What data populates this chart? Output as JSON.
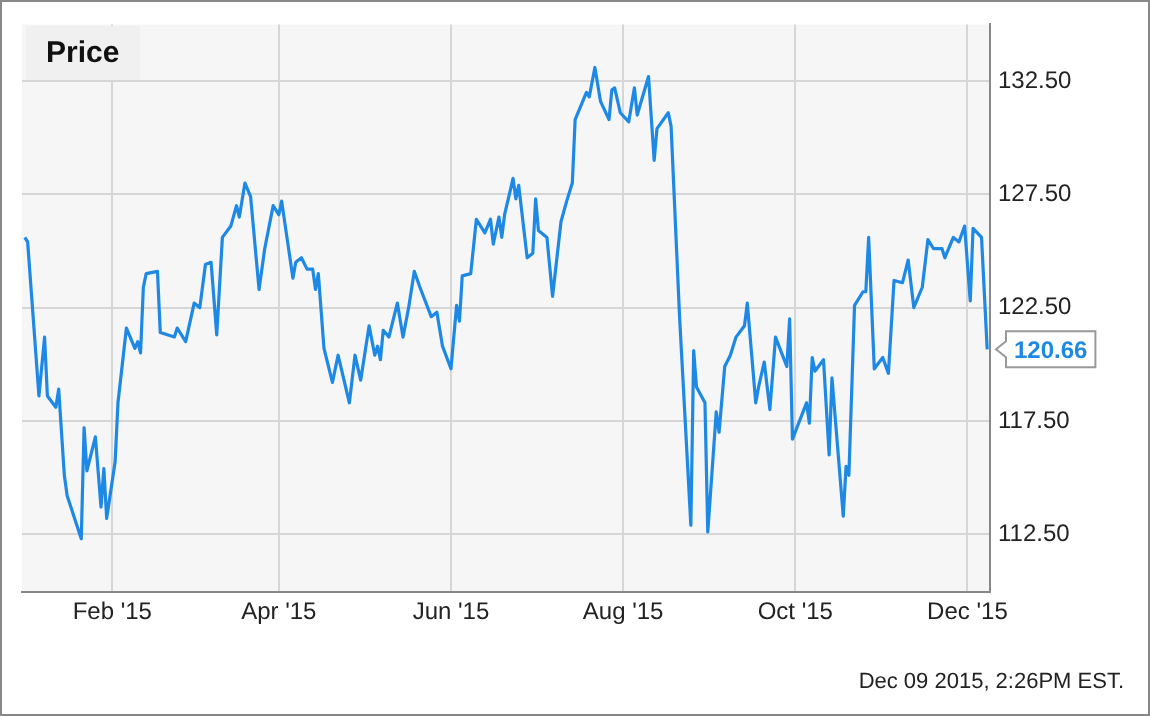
{
  "chart_data": {
    "type": "line",
    "title": "Price",
    "x": [
      "2015-01-01",
      "2015-01-02",
      "2015-01-06",
      "2015-01-08",
      "2015-01-09",
      "2015-01-12",
      "2015-01-13",
      "2015-01-15",
      "2015-01-16",
      "2015-01-21",
      "2015-01-22",
      "2015-01-23",
      "2015-01-26",
      "2015-01-28",
      "2015-01-29",
      "2015-01-30",
      "2015-02-02",
      "2015-02-03",
      "2015-02-06",
      "2015-02-09",
      "2015-02-10",
      "2015-02-11",
      "2015-02-12",
      "2015-02-13",
      "2015-02-17",
      "2015-02-18",
      "2015-02-23",
      "2015-02-24",
      "2015-02-27",
      "2015-03-02",
      "2015-03-04",
      "2015-03-06",
      "2015-03-08",
      "2015-03-10",
      "2015-03-12",
      "2015-03-15",
      "2015-03-17",
      "2015-03-18",
      "2015-03-20",
      "2015-03-22",
      "2015-03-25",
      "2015-03-27",
      "2015-03-30",
      "2015-04-01",
      "2015-04-02",
      "2015-04-06",
      "2015-04-07",
      "2015-04-09",
      "2015-04-11",
      "2015-04-13",
      "2015-04-14",
      "2015-04-15",
      "2015-04-17",
      "2015-04-20",
      "2015-04-22",
      "2015-04-26",
      "2015-04-28",
      "2015-04-30",
      "2015-05-03",
      "2015-05-05",
      "2015-05-06",
      "2015-05-07",
      "2015-05-08",
      "2015-05-10",
      "2015-05-13",
      "2015-05-15",
      "2015-05-17",
      "2015-05-19",
      "2015-05-21",
      "2015-05-25",
      "2015-05-27",
      "2015-05-29",
      "2015-06-01",
      "2015-06-03",
      "2015-06-04",
      "2015-06-05",
      "2015-06-08",
      "2015-06-10",
      "2015-06-13",
      "2015-06-15",
      "2015-06-16",
      "2015-06-18",
      "2015-06-19",
      "2015-06-20",
      "2015-06-23",
      "2015-06-24",
      "2015-06-25",
      "2015-06-28",
      "2015-06-30",
      "2015-07-01",
      "2015-07-02",
      "2015-07-05",
      "2015-07-07",
      "2015-07-10",
      "2015-07-12",
      "2015-07-14",
      "2015-07-15",
      "2015-07-19",
      "2015-07-20",
      "2015-07-22",
      "2015-07-24",
      "2015-07-27",
      "2015-07-28",
      "2015-07-29",
      "2015-07-31",
      "2015-08-03",
      "2015-08-05",
      "2015-08-06",
      "2015-08-10",
      "2015-08-12",
      "2015-08-13",
      "2015-08-17",
      "2015-08-18",
      "2015-08-21",
      "2015-08-25",
      "2015-08-26",
      "2015-08-27",
      "2015-08-30",
      "2015-08-31",
      "2015-09-03",
      "2015-09-04",
      "2015-09-06",
      "2015-09-08",
      "2015-09-10",
      "2015-09-13",
      "2015-09-14",
      "2015-09-17",
      "2015-09-18",
      "2015-09-20",
      "2015-09-22",
      "2015-09-24",
      "2015-09-28",
      "2015-09-29",
      "2015-09-30",
      "2015-10-05",
      "2015-10-06",
      "2015-10-07",
      "2015-10-08",
      "2015-10-11",
      "2015-10-13",
      "2015-10-14",
      "2015-10-18",
      "2015-10-19",
      "2015-10-20",
      "2015-10-22",
      "2015-10-25",
      "2015-10-26",
      "2015-10-27",
      "2015-10-29",
      "2015-11-01",
      "2015-11-03",
      "2015-11-05",
      "2015-11-08",
      "2015-11-10",
      "2015-11-12",
      "2015-11-15",
      "2015-11-17",
      "2015-11-19",
      "2015-11-22",
      "2015-11-23",
      "2015-11-26",
      "2015-11-28",
      "2015-11-30",
      "2015-12-02",
      "2015-12-03",
      "2015-12-06",
      "2015-12-08"
    ],
    "series": [
      {
        "color": "#1e88e5",
        "values": [
          125.6,
          125.4,
          118.6,
          121.2,
          118.6,
          118.1,
          118.9,
          115.1,
          114.2,
          112.3,
          117.2,
          115.3,
          116.8,
          113.7,
          115.4,
          113.2,
          115.7,
          118.3,
          121.6,
          120.7,
          121.0,
          120.5,
          123.4,
          124.0,
          124.1,
          121.4,
          121.2,
          121.6,
          121.0,
          122.7,
          122.5,
          124.4,
          124.5,
          121.3,
          125.6,
          126.1,
          127.0,
          126.5,
          128.0,
          127.4,
          123.3,
          125.1,
          127.0,
          126.6,
          127.2,
          123.8,
          124.5,
          124.7,
          124.2,
          124.2,
          123.3,
          124.0,
          120.7,
          119.2,
          120.4,
          118.3,
          120.4,
          119.3,
          121.7,
          120.4,
          120.8,
          120.2,
          121.5,
          121.2,
          122.7,
          121.2,
          122.5,
          124.1,
          123.4,
          122.1,
          122.3,
          120.8,
          119.8,
          122.6,
          121.9,
          123.9,
          124.0,
          126.4,
          125.8,
          126.4,
          125.3,
          126.5,
          125.6,
          126.6,
          128.2,
          127.3,
          127.9,
          124.7,
          124.9,
          127.3,
          125.9,
          125.6,
          123.0,
          126.3,
          127.2,
          128.0,
          130.8,
          132.0,
          131.8,
          133.1,
          131.6,
          130.8,
          132.1,
          132.2,
          131.1,
          130.7,
          132.2,
          131.0,
          132.7,
          129.0,
          130.4,
          131.1,
          130.5,
          122.1,
          112.9,
          120.6,
          119.0,
          118.3,
          112.6,
          117.9,
          117.0,
          119.9,
          120.4,
          121.2,
          121.7,
          122.7,
          118.3,
          119.0,
          120.1,
          118.0,
          121.2,
          119.9,
          122.0,
          116.7,
          118.3,
          117.4,
          120.3,
          119.7,
          120.2,
          116.0,
          119.4,
          113.3,
          115.5,
          115.1,
          122.6,
          123.2,
          123.2,
          125.6,
          119.8,
          120.3,
          119.6,
          123.7,
          123.6,
          124.6,
          122.5,
          123.4,
          125.5,
          125.1,
          125.1,
          124.7,
          125.6,
          125.4,
          126.1,
          122.8,
          126.0,
          125.6,
          120.66
        ]
      }
    ],
    "xlim": [
      "2014-12-31",
      "2015-12-09"
    ],
    "xticks": [
      {
        "value": "2015-02-01",
        "label": "Feb '15"
      },
      {
        "value": "2015-04-01",
        "label": "Apr '15"
      },
      {
        "value": "2015-06-01",
        "label": "Jun '15"
      },
      {
        "value": "2015-08-01",
        "label": "Aug '15"
      },
      {
        "value": "2015-10-01",
        "label": "Oct '15"
      },
      {
        "value": "2015-12-01",
        "label": "Dec '15"
      }
    ],
    "ylim": [
      109.95,
      135
    ],
    "yticks": [
      {
        "value": 112.5,
        "label": "112.50"
      },
      {
        "value": 117.5,
        "label": "117.50"
      },
      {
        "value": 122.5,
        "label": "122.50"
      },
      {
        "value": 127.5,
        "label": "127.50"
      },
      {
        "value": 132.5,
        "label": "132.50"
      }
    ],
    "grid": true,
    "marker": "none",
    "line_style": "solid",
    "legend": false,
    "annotations": [
      {
        "text": "120.66",
        "x": "2015-12-08",
        "y": 120.66
      },
      "Dec 09 2015, 2:26PM EST."
    ]
  }
}
